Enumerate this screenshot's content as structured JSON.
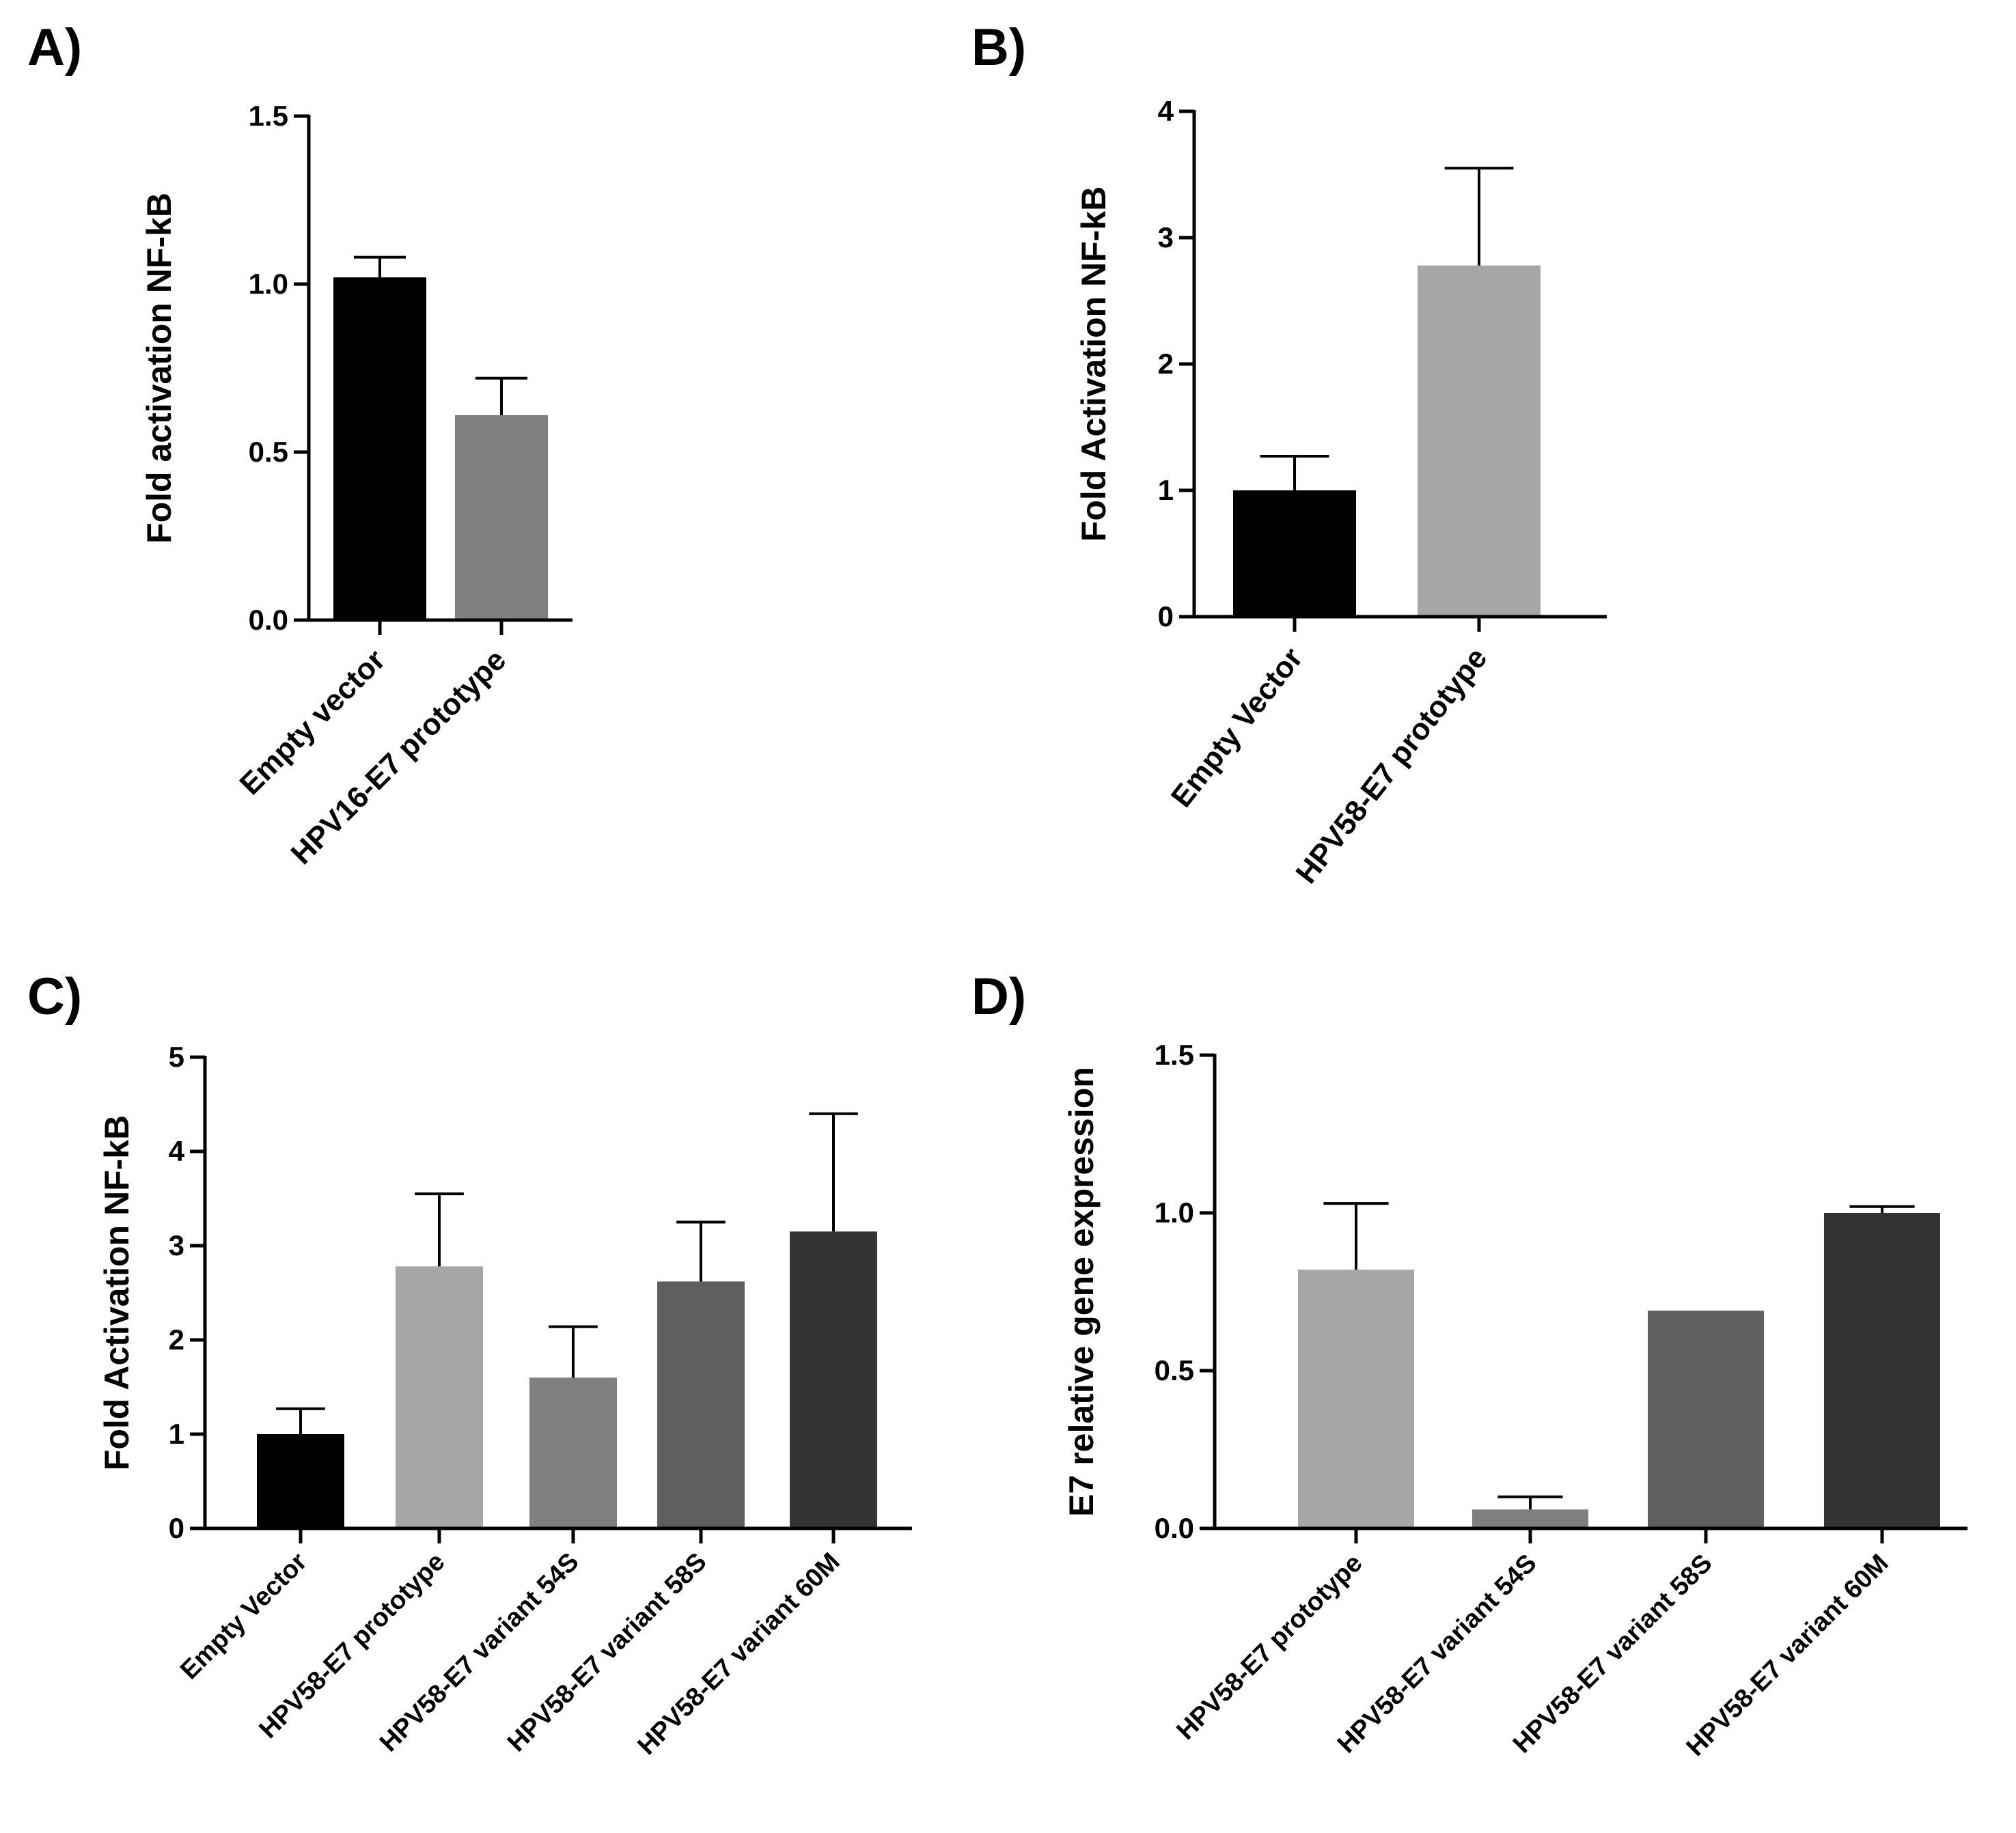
{
  "colors": {
    "black": "#000000",
    "light_gray": "#a6a6a8",
    "mid_gray": "#7f7f7f",
    "dark_gray": "#5f5f5f",
    "charcoal": "#333333"
  },
  "chart_data": [
    {
      "id": "A",
      "panel_label": "A)",
      "type": "bar",
      "ylabel": "Fold activation NF-kB",
      "ylim": [
        0,
        1.5
      ],
      "yticks": [
        "0.0",
        "0.5",
        "1.0",
        "1.5"
      ],
      "ytick_values": [
        0,
        0.5,
        1.0,
        1.5
      ],
      "categories": [
        "Empty vector",
        "HPV16-E7 prototype"
      ],
      "values": [
        1.02,
        0.61
      ],
      "errors": [
        0.06,
        0.11
      ],
      "bar_colors": [
        "#000000",
        "#7f7f7f"
      ]
    },
    {
      "id": "B",
      "panel_label": "B)",
      "type": "bar",
      "ylabel": "Fold Activation NF-kB",
      "ylim": [
        0,
        4
      ],
      "yticks": [
        "0",
        "1",
        "2",
        "3",
        "4"
      ],
      "ytick_values": [
        0,
        1,
        2,
        3,
        4
      ],
      "categories": [
        "Empty Vector",
        "HPV58-E7 prototype"
      ],
      "values": [
        1.0,
        2.78
      ],
      "errors": [
        0.27,
        0.77
      ],
      "bar_colors": [
        "#000000",
        "#a6a6a8"
      ]
    },
    {
      "id": "C",
      "panel_label": "C)",
      "type": "bar",
      "ylabel": "Fold Activation NF-kB",
      "ylim": [
        0,
        5
      ],
      "yticks": [
        "0",
        "1",
        "2",
        "3",
        "4",
        "5"
      ],
      "ytick_values": [
        0,
        1,
        2,
        3,
        4,
        5
      ],
      "categories": [
        "Empty Vector",
        "HPV58-E7 prototype",
        "HPV58-E7 variant 54S",
        "HPV58-E7 variant 58S",
        "HPV58-E7 variant 60M"
      ],
      "values": [
        1.0,
        2.78,
        1.6,
        2.62,
        3.15
      ],
      "errors": [
        0.27,
        0.77,
        0.54,
        0.63,
        1.25
      ],
      "bar_colors": [
        "#000000",
        "#a6a6a8",
        "#7f7f7f",
        "#5f5f5f",
        "#333333"
      ]
    },
    {
      "id": "D",
      "panel_label": "D)",
      "type": "bar",
      "ylabel": "E7 relative gene expression",
      "ylim": [
        0,
        1.5
      ],
      "yticks": [
        "0.0",
        "0.5",
        "1.0",
        "1.5"
      ],
      "ytick_values": [
        0,
        0.5,
        1.0,
        1.5
      ],
      "categories": [
        "HPV58-E7 prototype",
        "HPV58-E7 variant 54S",
        "HPV58-E7 variant 58S",
        "HPV58-E7 variant 60M"
      ],
      "values": [
        0.82,
        0.06,
        0.69,
        1.0
      ],
      "errors": [
        0.21,
        0.04,
        0,
        0.02
      ],
      "bar_colors": [
        "#a6a6a8",
        "#7f7f7f",
        "#5f5f5f",
        "#333333"
      ]
    }
  ]
}
